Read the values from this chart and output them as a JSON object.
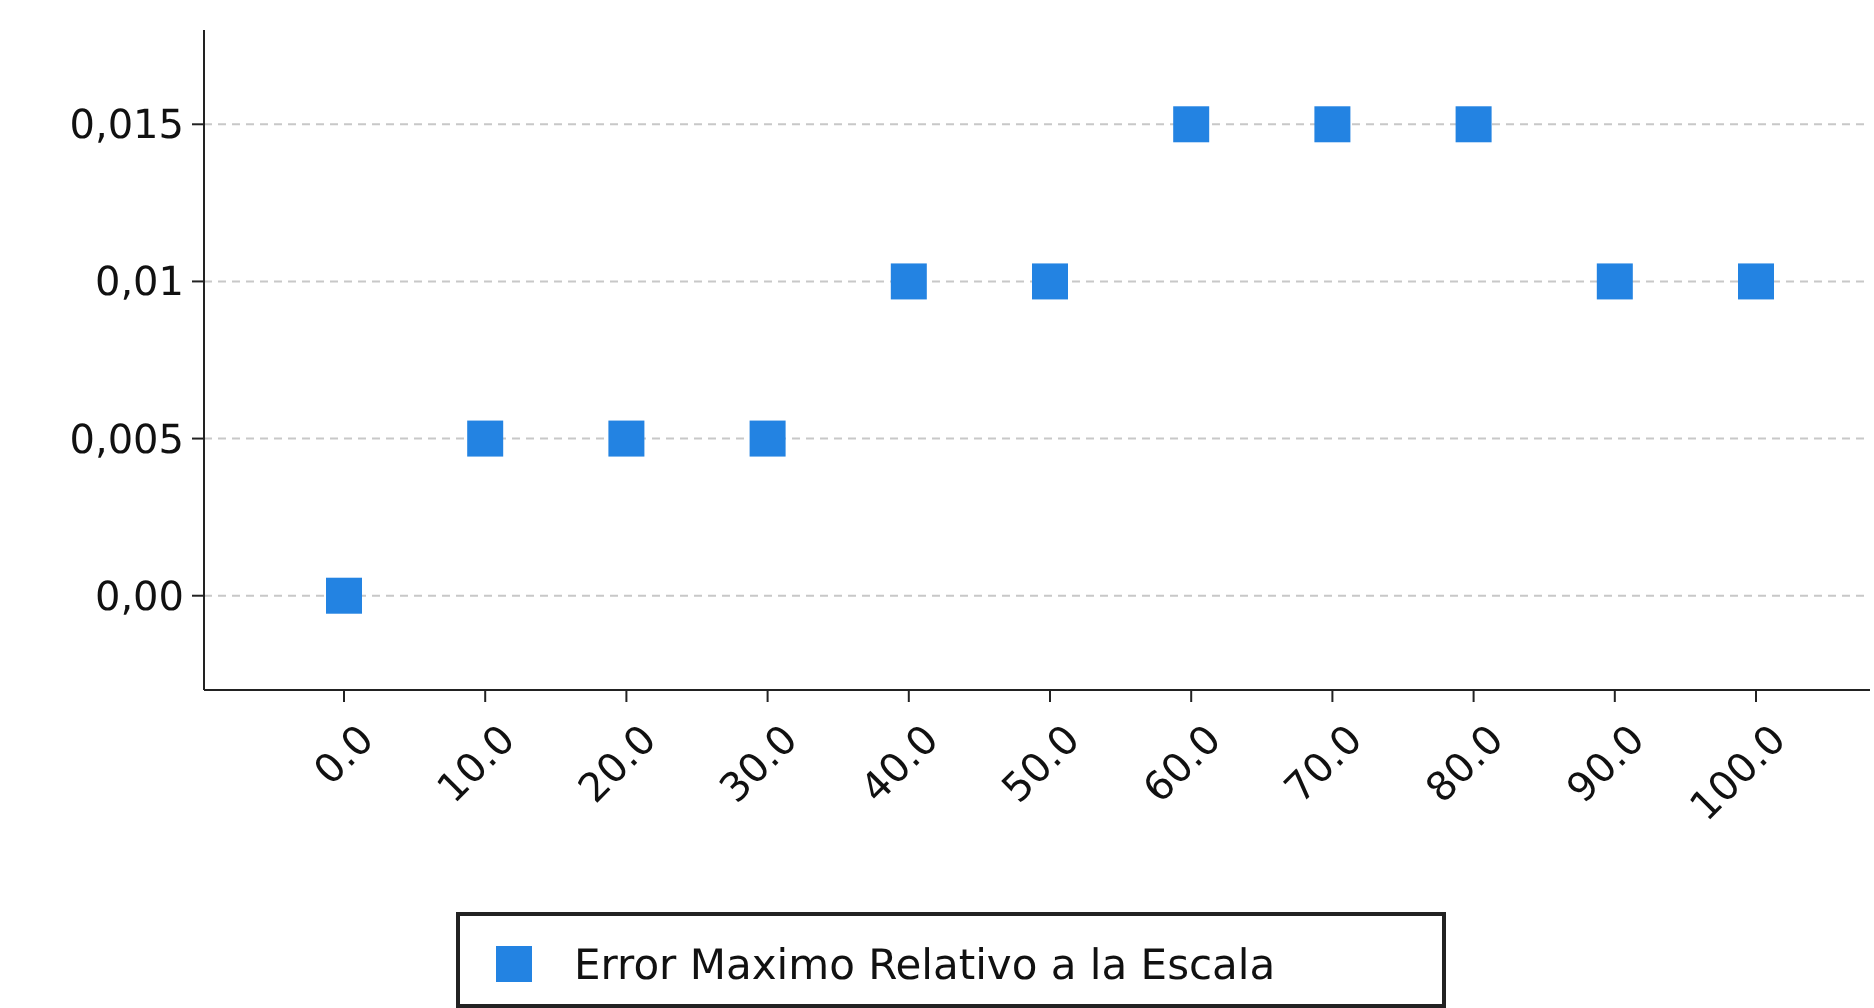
{
  "chart_data": {
    "type": "scatter",
    "categories": [
      "0.0",
      "10.0",
      "20.0",
      "30.0",
      "40.0",
      "50.0",
      "60.0",
      "70.0",
      "80.0",
      "90.0",
      "100.0"
    ],
    "series": [
      {
        "name": "Error Maximo Relativo a la Escala",
        "color": "#2383e2",
        "values": [
          0,
          0.005,
          0.005,
          0.005,
          0.01,
          0.01,
          0.015,
          0.015,
          0.015,
          0.01,
          0.01
        ]
      }
    ],
    "ylim": [
      -0.003,
      0.018
    ],
    "yticks": [
      {
        "value": 0,
        "label": "0,00"
      },
      {
        "value": 0.005,
        "label": "0,005"
      },
      {
        "value": 0.01,
        "label": "0,01"
      },
      {
        "value": 0.015,
        "label": "0,015"
      }
    ],
    "grid": "y",
    "legend": "bottom",
    "marker": "square"
  }
}
